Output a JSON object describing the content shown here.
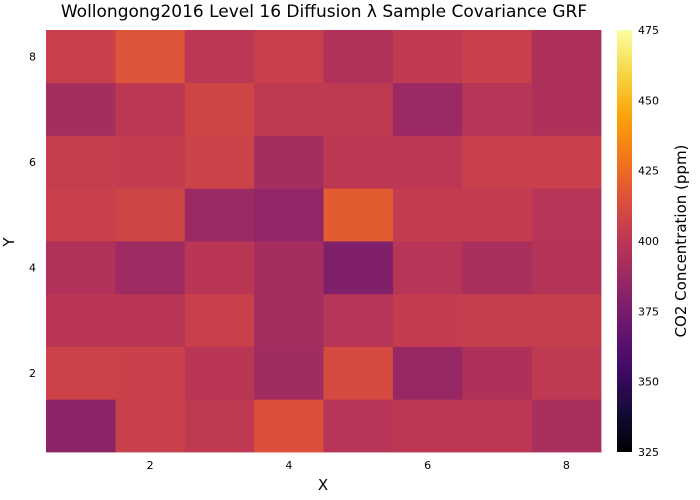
{
  "chart_data": {
    "type": "heatmap",
    "title": "Wollongong2016 Level 16 Diffusion λ Sample Covariance GRF",
    "xlabel": "X",
    "ylabel": "Y",
    "x": [
      1,
      2,
      3,
      4,
      5,
      6,
      7,
      8
    ],
    "y": [
      1,
      2,
      3,
      4,
      5,
      6,
      7,
      8
    ],
    "xlim": [
      0.5,
      8.5
    ],
    "ylim": [
      0.5,
      8.5
    ],
    "xticks": [
      2,
      4,
      6,
      8
    ],
    "yticks": [
      2,
      4,
      6,
      8
    ],
    "grid": false,
    "values_by_row_y": [
      [
        382,
        405,
        401,
        414,
        398,
        400,
        400,
        393
      ],
      [
        407,
        406,
        399,
        390,
        411,
        387,
        395,
        401
      ],
      [
        399,
        399,
        405,
        391,
        398,
        403,
        404,
        404
      ],
      [
        396,
        389,
        399,
        392,
        378,
        398,
        393,
        397
      ],
      [
        405,
        408,
        388,
        385,
        419,
        403,
        403,
        398
      ],
      [
        404,
        403,
        407,
        392,
        400,
        400,
        405,
        405
      ],
      [
        392,
        400,
        408,
        401,
        401,
        388,
        398,
        395
      ],
      [
        405,
        416,
        400,
        405,
        396,
        402,
        405,
        395
      ]
    ],
    "colorbar": {
      "label": "CO2 Concentration (ppm)",
      "min": 325,
      "max": 475,
      "ticks": [
        325,
        350,
        375,
        400,
        425,
        450,
        475
      ],
      "colormap": "inferno"
    }
  }
}
